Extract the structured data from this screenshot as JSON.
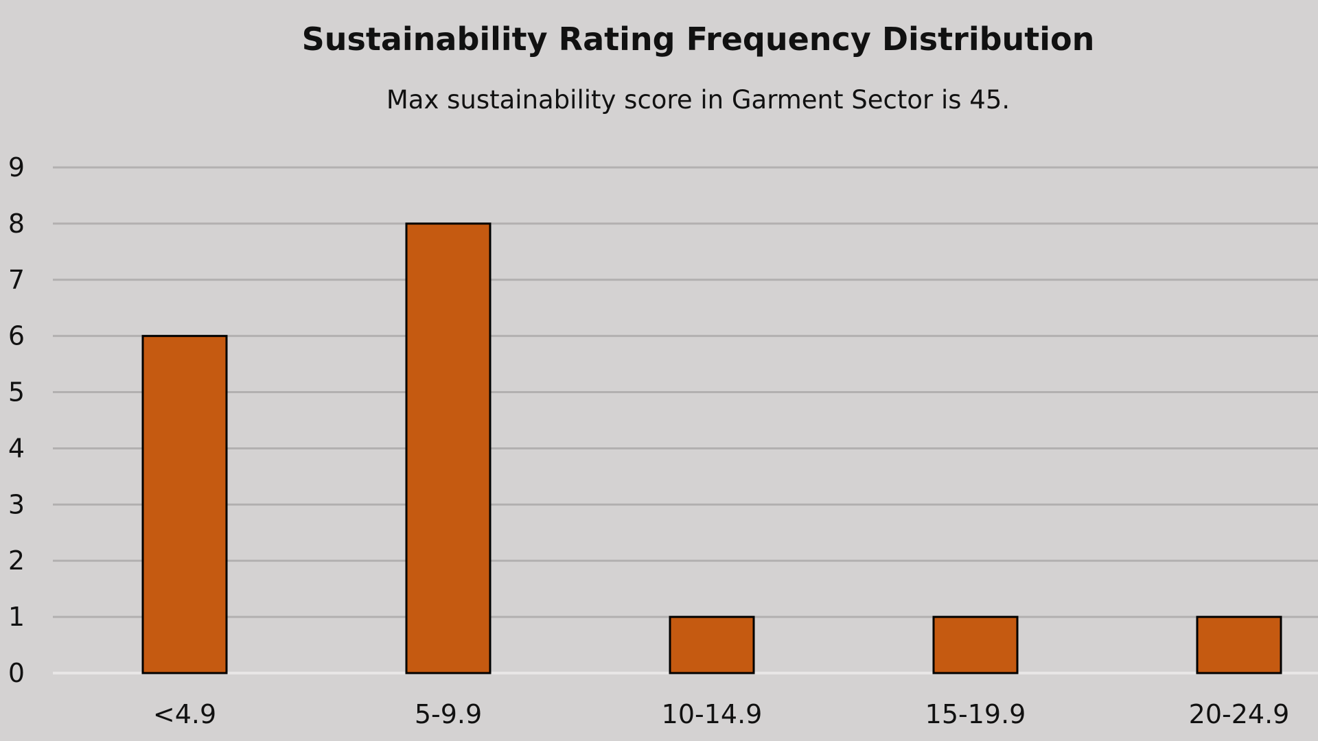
{
  "chart_data": {
    "type": "bar",
    "title": "Sustainability Rating Frequency Distribution",
    "subtitle": "Max sustainability score in Garment Sector is 45.",
    "categories": [
      "<4.9",
      "5-9.9",
      "10-14.9",
      "15-19.9",
      "20-24.9"
    ],
    "values": [
      6,
      8,
      1,
      1,
      1
    ],
    "xlabel": "",
    "ylabel": "",
    "ylim": [
      0,
      9
    ],
    "yticks": [
      0,
      1,
      2,
      3,
      4,
      5,
      6,
      7,
      8,
      9
    ],
    "grid": true,
    "legend": "none",
    "colors": {
      "background": "#d4d2d2",
      "bar_fill": "#c55a11",
      "bar_stroke": "#000000",
      "gridline": "#b2b0b0",
      "baseline": "#e8e6e6",
      "text": "#111111"
    }
  }
}
